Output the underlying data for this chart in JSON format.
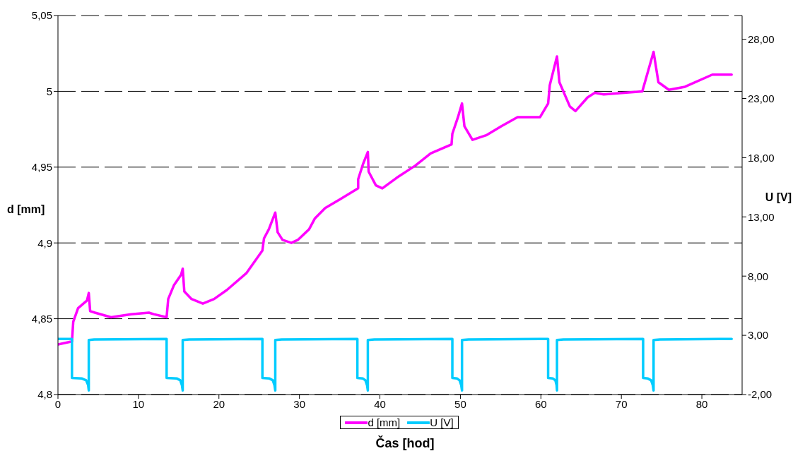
{
  "chart_data": {
    "type": "line",
    "xlabel": "Čas [hod]",
    "ylabel": "d [mm]",
    "y2label": "U [V]",
    "xlim": [
      0,
      85
    ],
    "xticks": [
      0,
      10,
      20,
      30,
      40,
      50,
      60,
      70,
      80
    ],
    "ylim": [
      4.8,
      5.05
    ],
    "yticks": [
      {
        "value": 4.8,
        "label": "4,8"
      },
      {
        "value": 4.85,
        "label": "4,85"
      },
      {
        "value": 4.9,
        "label": "4,9"
      },
      {
        "value": 4.95,
        "label": "4,95"
      },
      {
        "value": 5,
        "label": "5"
      },
      {
        "value": 5.05,
        "label": "5,05"
      }
    ],
    "y2lim": [
      -2,
      30
    ],
    "y2ticks": [
      {
        "value": -2,
        "label": "-2,00"
      },
      {
        "value": 3,
        "label": "3,00"
      },
      {
        "value": 8,
        "label": "8,00"
      },
      {
        "value": 13,
        "label": "13,00"
      },
      {
        "value": 18,
        "label": "18,00"
      },
      {
        "value": 23,
        "label": "23,00"
      },
      {
        "value": 28,
        "label": "28,00"
      }
    ],
    "grid": "y",
    "legend": "bottom",
    "marker": "none",
    "line_style": "solid",
    "series": [
      {
        "name": "d [mm]",
        "color": "#ff00ff",
        "x": [
          0,
          1.74,
          1.9,
          2.5,
          3.6,
          3.83,
          4.0,
          4.6,
          6.6,
          9.1,
          11.3,
          11.9,
          13.5,
          13.7,
          14.4,
          15.3,
          15.5,
          15.7,
          16.6,
          18.0,
          19.4,
          21.0,
          23.4,
          25.4,
          25.6,
          26.2,
          27.0,
          27.3,
          27.9,
          29.0,
          29.8,
          31.2,
          31.9,
          33.2,
          35.1,
          37.3,
          37.3,
          37.9,
          38.5,
          38.6,
          39.5,
          40.3,
          42.1,
          44.4,
          46.3,
          48.9,
          49.0,
          49.7,
          50.2,
          50.5,
          51.5,
          53.2,
          55.1,
          57.1,
          59.9,
          60.9,
          61.1,
          62.0,
          62.3,
          63.6,
          64.3,
          65.8,
          66.7,
          67.8,
          72.6,
          74.0,
          74.6,
          75.9,
          77.9,
          81.3,
          83.7
        ],
        "values": [
          4.833,
          4.835,
          4.848,
          4.857,
          4.862,
          4.867,
          4.855,
          4.854,
          4.851,
          4.853,
          4.854,
          4.853,
          4.851,
          4.863,
          4.872,
          4.879,
          4.883,
          4.868,
          4.863,
          4.86,
          4.863,
          4.869,
          4.88,
          4.895,
          4.903,
          4.909,
          4.92,
          4.907,
          4.902,
          4.9,
          4.902,
          4.909,
          4.916,
          4.923,
          4.929,
          4.936,
          4.942,
          4.952,
          4.96,
          4.947,
          4.938,
          4.936,
          4.943,
          4.951,
          4.959,
          4.965,
          4.972,
          4.983,
          4.992,
          4.977,
          4.968,
          4.971,
          4.977,
          4.983,
          4.983,
          4.992,
          5.004,
          5.023,
          5.006,
          4.99,
          4.987,
          4.996,
          4.999,
          4.998,
          5.0,
          5.026,
          5.006,
          5.001,
          5.003,
          5.011,
          5.011
        ]
      },
      {
        "name": "U [V]",
        "color": "#00ccff",
        "axis": "y2",
        "x": [
          0,
          1.74,
          1.74,
          3.0,
          3.5,
          3.75,
          3.83,
          3.83,
          4.5,
          13.5,
          13.5,
          14.8,
          15.2,
          15.4,
          15.5,
          15.5,
          16.3,
          25.4,
          25.4,
          26.3,
          26.7,
          26.9,
          27.0,
          27.0,
          27.8,
          37.2,
          37.2,
          37.9,
          38.2,
          38.4,
          38.5,
          38.5,
          39.3,
          49.0,
          49.0,
          49.6,
          49.9,
          50.1,
          50.2,
          50.2,
          51.0,
          60.9,
          60.9,
          61.5,
          61.8,
          61.95,
          62.0,
          62.0,
          62.8,
          72.7,
          72.7,
          73.3,
          73.7,
          73.9,
          74.0,
          74.0,
          74.8,
          83.7
        ],
        "values": [
          2.7,
          2.7,
          -0.6,
          -0.65,
          -0.8,
          -1.2,
          -1.65,
          2.6,
          2.65,
          2.7,
          -0.6,
          -0.65,
          -0.8,
          -1.2,
          -1.65,
          2.6,
          2.65,
          2.7,
          -0.6,
          -0.65,
          -0.8,
          -1.2,
          -1.65,
          2.6,
          2.65,
          2.7,
          -0.6,
          -0.65,
          -0.8,
          -1.2,
          -1.65,
          2.6,
          2.65,
          2.7,
          -0.6,
          -0.65,
          -0.8,
          -1.2,
          -1.65,
          2.6,
          2.65,
          2.7,
          -0.6,
          -0.65,
          -0.8,
          -1.2,
          -1.65,
          2.6,
          2.65,
          2.7,
          -0.6,
          -0.65,
          -0.8,
          -1.2,
          -1.65,
          2.6,
          2.65,
          2.7
        ]
      }
    ]
  }
}
